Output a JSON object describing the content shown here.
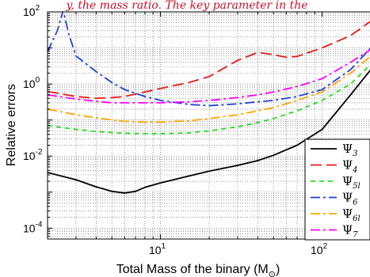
{
  "chart_data": {
    "type": "line",
    "title": "y, the mass ratio. The key parameter in the",
    "xlabel": "Total Mass of the binary (M",
    "xlabel_sub": "⊙",
    "xlabel_close": ")",
    "ylabel": "Relative errors",
    "xscale": "log",
    "yscale": "log",
    "xlim": [
      2,
      200
    ],
    "ylim": [
      5e-05,
      100
    ],
    "grid": true,
    "legend_position": "bottom-right",
    "x_ticks": [
      {
        "value": 10,
        "base": "10",
        "exp": "1"
      },
      {
        "value": 100,
        "base": "10",
        "exp": "2"
      }
    ],
    "y_ticks": [
      {
        "value": 0.0001,
        "base": "10",
        "exp": "-4"
      },
      {
        "value": 0.01,
        "base": "10",
        "exp": "-2"
      },
      {
        "value": 1,
        "base": "10",
        "exp": "0"
      },
      {
        "value": 100,
        "base": "10",
        "exp": "2"
      }
    ],
    "series": [
      {
        "name": "Ψ",
        "sub": "3",
        "color": "#000000",
        "dash": "solid",
        "points": [
          [
            2,
            0.0035
          ],
          [
            3,
            0.0022
          ],
          [
            4,
            0.0014
          ],
          [
            5,
            0.00105
          ],
          [
            6,
            0.00095
          ],
          [
            7,
            0.00105
          ],
          [
            8,
            0.00135
          ],
          [
            10,
            0.0018
          ],
          [
            15,
            0.0028
          ],
          [
            20,
            0.0038
          ],
          [
            30,
            0.0055
          ],
          [
            40,
            0.0075
          ],
          [
            50,
            0.0105
          ],
          [
            70,
            0.02
          ],
          [
            100,
            0.055
          ],
          [
            150,
            0.5
          ],
          [
            200,
            2.5
          ]
        ]
      },
      {
        "name": "Ψ",
        "sub": "4",
        "color": "#e31a1c",
        "dash": "long",
        "points": [
          [
            2,
            0.62
          ],
          [
            3,
            0.45
          ],
          [
            4,
            0.4
          ],
          [
            5,
            0.42
          ],
          [
            6,
            0.45
          ],
          [
            8,
            0.6
          ],
          [
            10,
            0.75
          ],
          [
            15,
            1.1
          ],
          [
            20,
            1.6
          ],
          [
            30,
            4.5
          ],
          [
            40,
            7.5
          ],
          [
            50,
            6.5
          ],
          [
            60,
            5.5
          ],
          [
            70,
            5.8
          ],
          [
            100,
            10
          ],
          [
            150,
            22
          ],
          [
            200,
            55
          ]
        ]
      },
      {
        "name": "Ψ",
        "sub": "5l",
        "color": "#22dd22",
        "dash": "short",
        "points": [
          [
            2,
            0.07
          ],
          [
            3,
            0.055
          ],
          [
            4,
            0.048
          ],
          [
            5,
            0.045
          ],
          [
            6,
            0.043
          ],
          [
            8,
            0.042
          ],
          [
            10,
            0.042
          ],
          [
            15,
            0.044
          ],
          [
            20,
            0.05
          ],
          [
            30,
            0.065
          ],
          [
            40,
            0.085
          ],
          [
            50,
            0.11
          ],
          [
            70,
            0.18
          ],
          [
            100,
            0.35
          ],
          [
            150,
            1.0
          ],
          [
            200,
            3.5
          ]
        ]
      },
      {
        "name": "Ψ",
        "sub": "6",
        "color": "#1f3fd8",
        "dash": "dashdot",
        "points": [
          [
            2,
            8
          ],
          [
            2.3,
            30
          ],
          [
            2.5,
            110
          ],
          [
            2.7,
            25
          ],
          [
            3,
            6
          ],
          [
            4,
            2.2
          ],
          [
            5,
            1.1
          ],
          [
            6,
            0.7
          ],
          [
            8,
            0.45
          ],
          [
            10,
            0.35
          ],
          [
            15,
            0.27
          ],
          [
            20,
            0.25
          ],
          [
            30,
            0.28
          ],
          [
            40,
            0.32
          ],
          [
            50,
            0.35
          ],
          [
            70,
            0.45
          ],
          [
            100,
            0.7
          ],
          [
            150,
            2.5
          ],
          [
            200,
            10
          ]
        ]
      },
      {
        "name": "Ψ",
        "sub": "6l",
        "color": "#ffa500",
        "dash": "dashdot",
        "points": [
          [
            2,
            0.2
          ],
          [
            3,
            0.14
          ],
          [
            4,
            0.115
          ],
          [
            5,
            0.1
          ],
          [
            6,
            0.092
          ],
          [
            8,
            0.088
          ],
          [
            10,
            0.088
          ],
          [
            15,
            0.095
          ],
          [
            20,
            0.11
          ],
          [
            30,
            0.14
          ],
          [
            40,
            0.18
          ],
          [
            50,
            0.22
          ],
          [
            70,
            0.35
          ],
          [
            100,
            0.6
          ],
          [
            150,
            2.0
          ],
          [
            200,
            6
          ]
        ]
      },
      {
        "name": "Ψ",
        "sub": "7",
        "color": "#ff00ff",
        "dash": "dashdot",
        "points": [
          [
            2,
            0.5
          ],
          [
            3,
            0.38
          ],
          [
            4,
            0.33
          ],
          [
            5,
            0.3
          ],
          [
            6,
            0.3
          ],
          [
            8,
            0.3
          ],
          [
            10,
            0.3
          ],
          [
            15,
            0.32
          ],
          [
            20,
            0.35
          ],
          [
            30,
            0.42
          ],
          [
            40,
            0.5
          ],
          [
            50,
            0.6
          ],
          [
            70,
            0.85
          ],
          [
            100,
            1.4
          ],
          [
            150,
            4
          ],
          [
            200,
            9
          ]
        ]
      }
    ]
  }
}
